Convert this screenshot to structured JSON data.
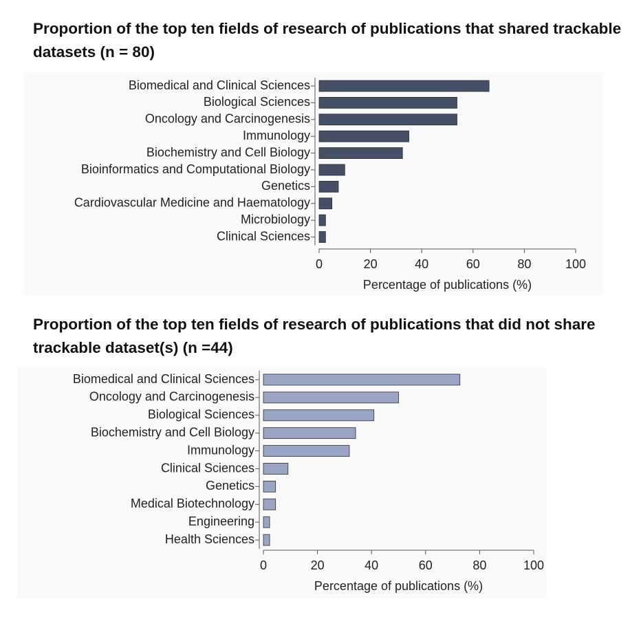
{
  "chart_data": [
    {
      "type": "barh",
      "title": "Proportion of the top ten fields of research of publications that shared trackable datasets (n = 80)",
      "categories": [
        "Biomedical and Clinical Sciences",
        "Biological Sciences",
        "Oncology and Carcinogenesis",
        "Immunology",
        "Biochemistry and Cell Biology",
        "Bioinformatics and Computational Biology",
        "Genetics",
        "Cardiovascular Medicine and Haematology",
        "Microbiology",
        "Clinical Sciences"
      ],
      "values": [
        66.25,
        53.75,
        53.75,
        35,
        32.5,
        10,
        7.5,
        5,
        2.5,
        2.5
      ],
      "color": "#454f65",
      "xlim": [
        0,
        100
      ],
      "xticks": [
        0,
        20,
        40,
        60,
        80,
        100
      ],
      "xlabel": "Percentage of publications (%)",
      "grid": false
    },
    {
      "type": "barh",
      "title": "Proportion of the top ten fields of research of publications that did not share trackable dataset(s) (n =44)",
      "categories": [
        "Biomedical and Clinical Sciences",
        "Oncology and Carcinogenesis",
        "Biological Sciences",
        "Biochemistry and Cell Biology",
        "Immunology",
        "Clinical Sciences",
        "Genetics",
        "Medical Biotechnology",
        "Engineering",
        "Health Sciences"
      ],
      "values": [
        72.7,
        50,
        40.9,
        34.1,
        31.8,
        9.1,
        4.5,
        4.5,
        2.3,
        2.3
      ],
      "color": "#9aa5c5",
      "xlim": [
        0,
        100
      ],
      "xticks": [
        0,
        20,
        40,
        60,
        80,
        100
      ],
      "xlabel": "Percentage of publications (%)",
      "grid": false
    }
  ]
}
